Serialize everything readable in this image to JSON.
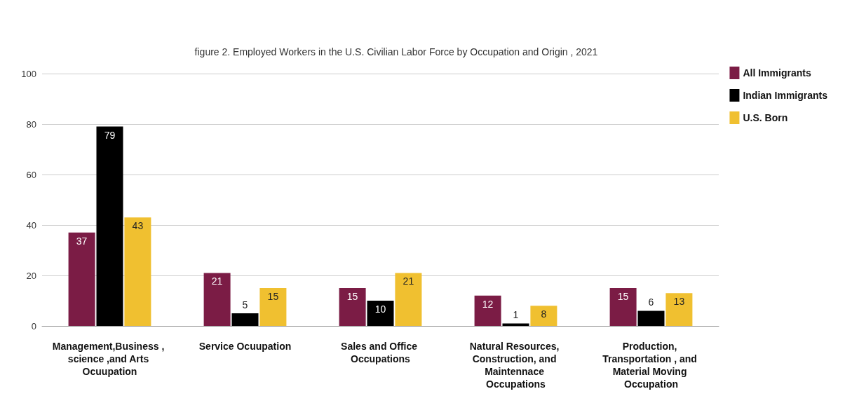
{
  "chart_data": {
    "type": "bar",
    "title": "figure 2. Employed Workers in the U.S. Civilian Labor Force by Occupation and Origin , 2021",
    "categories": [
      "Management,Business , science ,and Arts Ocuupation",
      "Service Ocuupation",
      "Sales and Office Occupations",
      "Natural Resources, Construction, and Maintennace Occupations",
      "Production, Transportation , and Material Moving Occupation"
    ],
    "series": [
      {
        "name": "All Immigrants",
        "color": "#7b1c45",
        "values": [
          37,
          21,
          15,
          12,
          15
        ]
      },
      {
        "name": "Indian Immigrants",
        "color": "#000000",
        "values": [
          79,
          5,
          10,
          1,
          6
        ]
      },
      {
        "name": "U.S. Born",
        "color": "#f0c030",
        "values": [
          43,
          15,
          21,
          8,
          13
        ]
      }
    ],
    "ylim": [
      0,
      100
    ],
    "yticks": [
      0,
      20,
      40,
      60,
      80,
      100
    ],
    "grid": "y",
    "legend": "top right",
    "data_labels": true
  }
}
